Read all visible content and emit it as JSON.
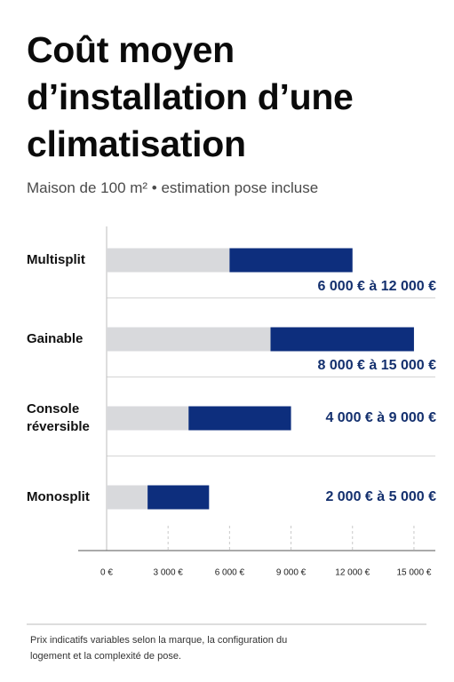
{
  "chart_data": {
    "type": "range_bar",
    "title": "Coût moyen d’installation d’une climatisation",
    "subtitle": "Maison de 100 m² • estimation pose incluse",
    "categories": [
      "Multisplit",
      "Gainable",
      "Console réversible",
      "Monosplit"
    ],
    "min": [
      6000,
      8000,
      4000,
      2000
    ],
    "max": [
      12000,
      15000,
      9000,
      5000
    ],
    "value_labels": [
      "6 000 € à 12 000 €",
      "8 000 € à 15 000 €",
      "4 000 € à 9 000 €",
      "2 000 € à 5 000 €"
    ],
    "colors": {
      "base": "#d8d9dc",
      "range": "#0d2e7d"
    },
    "xlim": [
      0,
      16000
    ],
    "xticks": [
      {
        "value": 0,
        "label": "0 €"
      },
      {
        "value": 3000,
        "label": "3 000 €"
      },
      {
        "value": 6000,
        "label": "6 000 €"
      },
      {
        "value": 9000,
        "label": "9 000 €"
      },
      {
        "value": 12000,
        "label": "12 000 €"
      },
      {
        "value": 15000,
        "label": "15 000 €"
      }
    ],
    "note": "Prix indicatifs variables selon la marque, la configuration du logement et la complexité de pose."
  }
}
